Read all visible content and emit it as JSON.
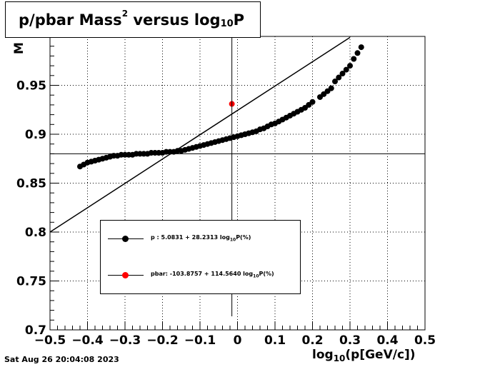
{
  "chart_data": {
    "type": "scatter",
    "title": "p/pbar Mass",
    "title_sup": "2",
    "title_mid": " versus log",
    "title_sub": "10",
    "title_end": "P",
    "xlabel_pre": "log",
    "xlabel_sub": "10",
    "xlabel_post": "(p[GeV/c])",
    "ylabel": "M",
    "xlim": [
      -0.5,
      0.5
    ],
    "ylim": [
      0.7,
      1.0
    ],
    "x_ticks": [
      "−0.5",
      "−0.4",
      "−0.3",
      "−0.2",
      "−0.1",
      "0",
      "0.1",
      "0.2",
      "0.3",
      "0.4",
      "0.5"
    ],
    "y_ticks": [
      "0.7",
      "0.75",
      "0.8",
      "0.85",
      "0.9",
      "0.95"
    ],
    "grid": true,
    "reference_lines": {
      "horizontal_y": 0.88,
      "vertical_x": -0.015
    },
    "series": [
      {
        "name": "p",
        "color": "#000000",
        "x": [
          -0.42,
          -0.41,
          -0.4,
          -0.39,
          -0.38,
          -0.37,
          -0.36,
          -0.35,
          -0.34,
          -0.33,
          -0.32,
          -0.31,
          -0.3,
          -0.29,
          -0.28,
          -0.27,
          -0.26,
          -0.25,
          -0.24,
          -0.23,
          -0.22,
          -0.21,
          -0.2,
          -0.19,
          -0.18,
          -0.17,
          -0.16,
          -0.15,
          -0.14,
          -0.13,
          -0.12,
          -0.11,
          -0.1,
          -0.09,
          -0.08,
          -0.07,
          -0.06,
          -0.05,
          -0.04,
          -0.03,
          -0.02,
          -0.01,
          0.0,
          0.01,
          0.02,
          0.03,
          0.04,
          0.05,
          0.06,
          0.07,
          0.08,
          0.09,
          0.1,
          0.11,
          0.12,
          0.13,
          0.14,
          0.15,
          0.16,
          0.17,
          0.18,
          0.19,
          0.2,
          0.22,
          0.23,
          0.24,
          0.25,
          0.26,
          0.27,
          0.28,
          0.29,
          0.3,
          0.31,
          0.32,
          0.33
        ],
        "y": [
          0.867,
          0.869,
          0.871,
          0.872,
          0.873,
          0.874,
          0.875,
          0.876,
          0.877,
          0.878,
          0.878,
          0.879,
          0.879,
          0.879,
          0.879,
          0.88,
          0.88,
          0.88,
          0.88,
          0.881,
          0.881,
          0.881,
          0.881,
          0.882,
          0.882,
          0.882,
          0.883,
          0.883,
          0.884,
          0.885,
          0.886,
          0.887,
          0.888,
          0.889,
          0.89,
          0.891,
          0.892,
          0.893,
          0.894,
          0.895,
          0.896,
          0.897,
          0.898,
          0.899,
          0.9,
          0.901,
          0.902,
          0.903,
          0.905,
          0.906,
          0.908,
          0.91,
          0.911,
          0.913,
          0.915,
          0.917,
          0.919,
          0.921,
          0.923,
          0.925,
          0.927,
          0.93,
          0.933,
          0.938,
          0.941,
          0.944,
          0.947,
          0.954,
          0.958,
          0.962,
          0.966,
          0.97,
          0.977,
          0.983,
          0.989
        ]
      },
      {
        "name": "pbar",
        "color": "#ff0000",
        "x": [
          -0.015
        ],
        "y": [
          0.931
        ]
      }
    ],
    "fit_lines": [
      {
        "x": [
          -0.5,
          0.3
        ],
        "y": [
          0.8,
          0.999
        ]
      }
    ],
    "legend": [
      {
        "label_pre": "p   : 5.0831 + 28.2313 log",
        "label_sub": "10",
        "label_post": "P(%)",
        "color": "#000000"
      },
      {
        "label_pre": "pbar: -103.8757 + 114.5640 log",
        "label_sub": "10",
        "label_post": "P(%)",
        "color": "#ff0000"
      }
    ]
  },
  "timestamp": "Sat Aug 26 20:04:08 2023"
}
